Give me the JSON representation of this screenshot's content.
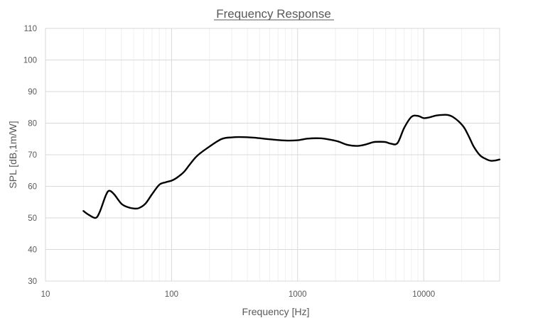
{
  "chart_data": {
    "type": "line",
    "title": "Frequency Response",
    "xlabel": "Frequency [Hz]",
    "ylabel": "SPL [dB,1m/W]",
    "x_scale": "log",
    "xlim": [
      10,
      40000
    ],
    "ylim": [
      30,
      110
    ],
    "x_ticks": [
      10,
      100,
      1000,
      10000
    ],
    "x_tick_labels": [
      "10",
      "100",
      "1000",
      "10000"
    ],
    "y_ticks": [
      30,
      40,
      50,
      60,
      70,
      80,
      90,
      100,
      110
    ],
    "y_tick_labels": [
      "30",
      "40",
      "50",
      "60",
      "70",
      "80",
      "90",
      "100",
      "110"
    ],
    "grid": true,
    "legend": "none",
    "series": [
      {
        "color": "#000000",
        "points": [
          [
            20,
            52.2
          ],
          [
            22,
            51.0
          ],
          [
            25,
            50.0
          ],
          [
            27,
            52.0
          ],
          [
            30,
            57.0
          ],
          [
            32,
            58.6
          ],
          [
            35,
            57.5
          ],
          [
            40,
            54.5
          ],
          [
            45,
            53.4
          ],
          [
            50,
            53.0
          ],
          [
            55,
            53.1
          ],
          [
            62,
            54.5
          ],
          [
            70,
            57.5
          ],
          [
            80,
            60.5
          ],
          [
            90,
            61.3
          ],
          [
            100,
            61.8
          ],
          [
            110,
            62.7
          ],
          [
            125,
            64.5
          ],
          [
            140,
            67.0
          ],
          [
            160,
            69.7
          ],
          [
            200,
            72.6
          ],
          [
            250,
            75.0
          ],
          [
            300,
            75.5
          ],
          [
            350,
            75.6
          ],
          [
            450,
            75.4
          ],
          [
            600,
            74.9
          ],
          [
            800,
            74.5
          ],
          [
            1000,
            74.6
          ],
          [
            1200,
            75.1
          ],
          [
            1500,
            75.2
          ],
          [
            1800,
            74.8
          ],
          [
            2100,
            74.2
          ],
          [
            2500,
            73.1
          ],
          [
            3000,
            72.8
          ],
          [
            3500,
            73.3
          ],
          [
            4000,
            74.0
          ],
          [
            4500,
            74.1
          ],
          [
            5000,
            74.0
          ],
          [
            5500,
            73.5
          ],
          [
            6200,
            73.7
          ],
          [
            7000,
            78.5
          ],
          [
            8000,
            82.0
          ],
          [
            9000,
            82.3
          ],
          [
            10000,
            81.6
          ],
          [
            11000,
            81.8
          ],
          [
            12500,
            82.4
          ],
          [
            14000,
            82.6
          ],
          [
            15500,
            82.6
          ],
          [
            17000,
            82.0
          ],
          [
            19000,
            80.5
          ],
          [
            21000,
            78.5
          ],
          [
            23000,
            75.5
          ],
          [
            25000,
            72.5
          ],
          [
            28000,
            69.8
          ],
          [
            31000,
            68.7
          ],
          [
            34000,
            68.1
          ],
          [
            37000,
            68.2
          ],
          [
            40000,
            68.5
          ]
        ]
      }
    ]
  }
}
